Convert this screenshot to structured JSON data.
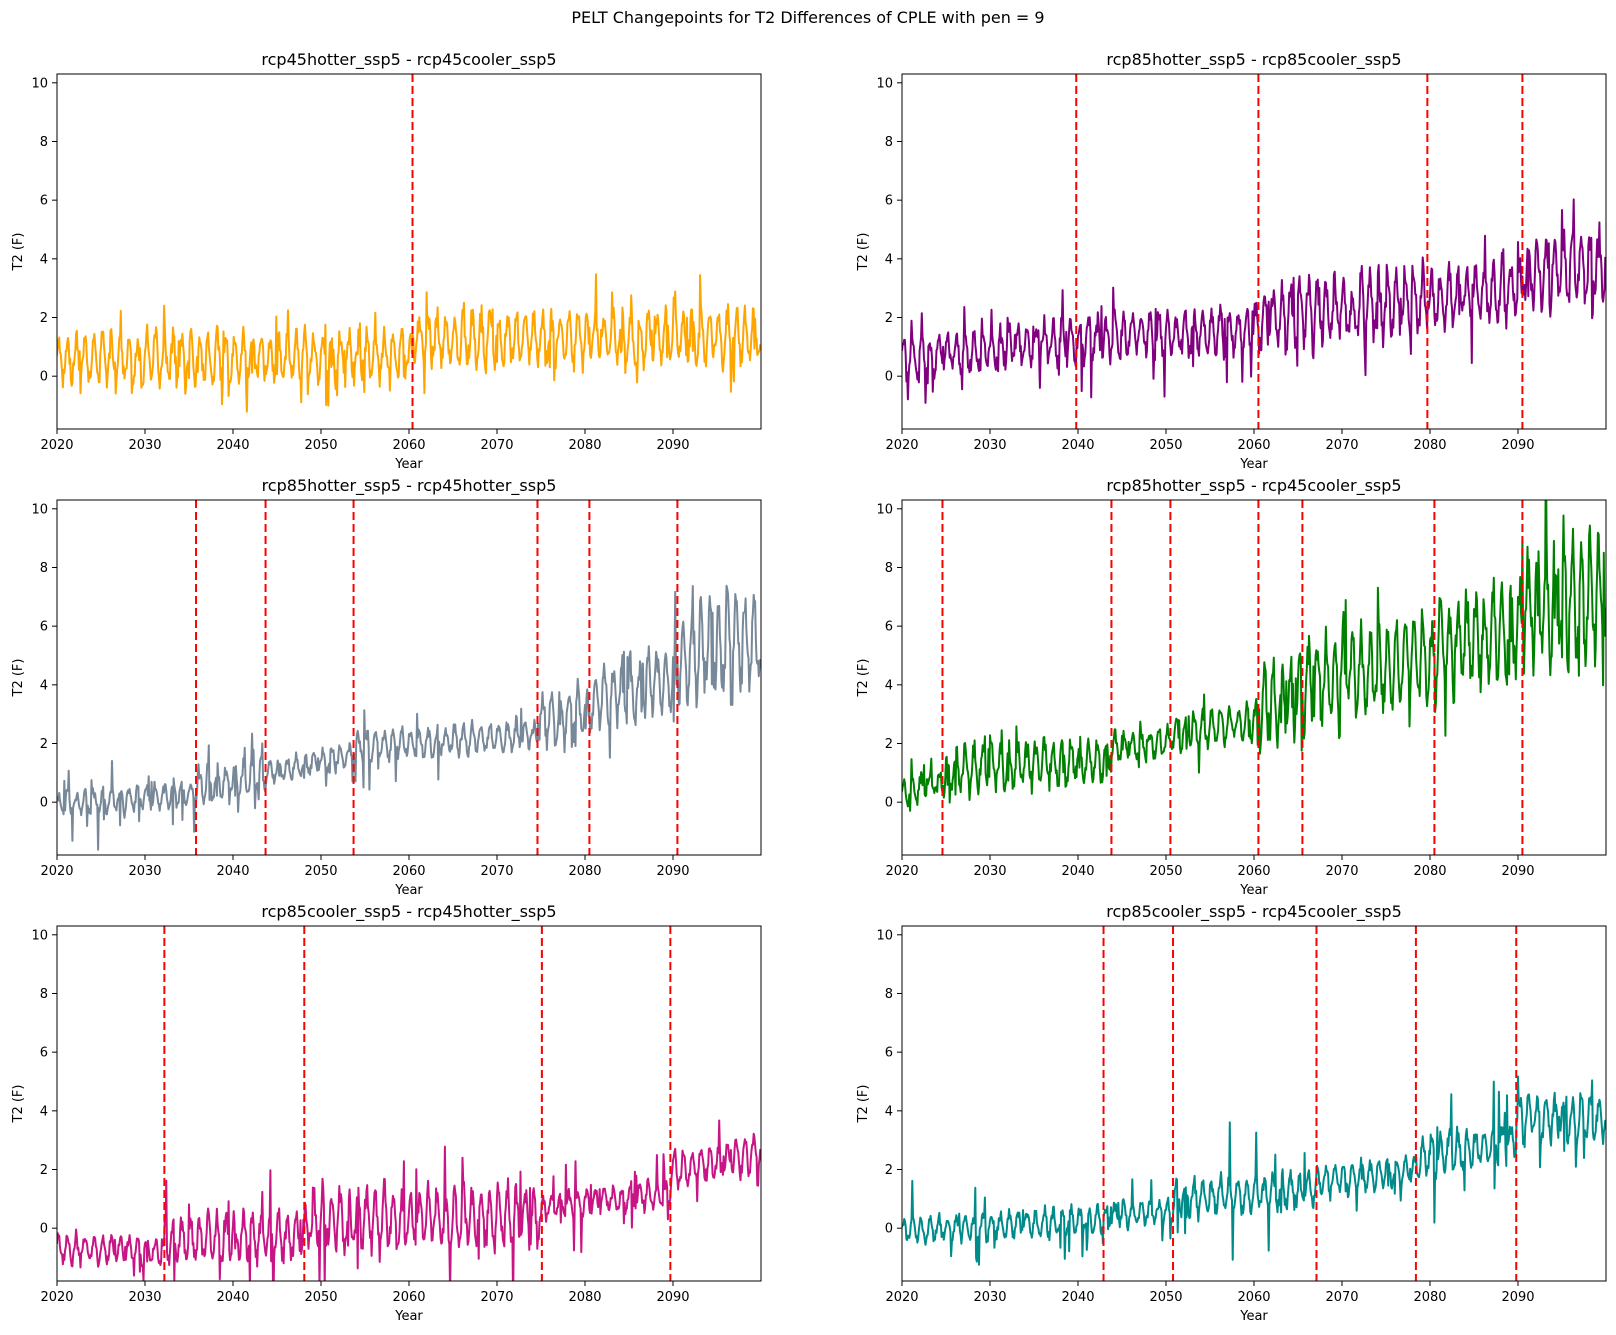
{
  "suptitle": "PELT Changepoints for T2 Differences of CPLE with pen = 9",
  "chart_data": [
    {
      "type": "line",
      "title": "rcp45hotter_ssp5 - rcp45cooler_ssp5",
      "xlabel": "Year",
      "ylabel": "T2 (F)",
      "xlim": [
        2020,
        2100
      ],
      "ylim": [
        -1.8,
        10.3
      ],
      "xticks": [
        2020,
        2030,
        2040,
        2050,
        2060,
        2070,
        2080,
        2090
      ],
      "yticks": [
        0,
        2,
        4,
        6,
        8,
        10
      ],
      "grid": false,
      "color": "#ffa500",
      "changepoint_color": "#ff0000",
      "changepoints": [
        2060.4
      ],
      "segments": [
        {
          "start": 2020,
          "end": 2060.4,
          "base_start": 0.55,
          "base_end": 0.75,
          "amplitude": 0.85,
          "spike_amplitude": 1.2
        },
        {
          "start": 2060.4,
          "end": 2100,
          "base_start": 1.3,
          "base_end": 1.35,
          "amplitude": 0.9,
          "spike_amplitude": 1.4
        }
      ]
    },
    {
      "type": "line",
      "title": "rcp85hotter_ssp5 - rcp85cooler_ssp5",
      "xlabel": "Year",
      "ylabel": "T2 (F)",
      "xlim": [
        2020,
        2100
      ],
      "ylim": [
        -1.8,
        10.3
      ],
      "xticks": [
        2020,
        2030,
        2040,
        2050,
        2060,
        2070,
        2080,
        2090
      ],
      "yticks": [
        0,
        2,
        4,
        6,
        8,
        10
      ],
      "grid": false,
      "color": "#800080",
      "changepoint_color": "#ff0000",
      "changepoints": [
        2039.8,
        2060.5,
        2079.7,
        2090.5
      ],
      "segments": [
        {
          "start": 2020,
          "end": 2039.8,
          "base_start": 0.6,
          "base_end": 1.2,
          "amplitude": 0.7,
          "spike_amplitude": 1.0
        },
        {
          "start": 2039.8,
          "end": 2060.5,
          "base_start": 1.3,
          "base_end": 1.6,
          "amplitude": 0.8,
          "spike_amplitude": 1.8
        },
        {
          "start": 2060.5,
          "end": 2079.7,
          "base_start": 2.0,
          "base_end": 2.6,
          "amplitude": 1.1,
          "spike_amplitude": 1.6
        },
        {
          "start": 2079.7,
          "end": 2090.5,
          "base_start": 2.6,
          "base_end": 3.0,
          "amplitude": 1.0,
          "spike_amplitude": 1.4
        },
        {
          "start": 2090.5,
          "end": 2100,
          "base_start": 3.4,
          "base_end": 3.8,
          "amplitude": 1.2,
          "spike_amplitude": 2.0
        }
      ]
    },
    {
      "type": "line",
      "title": "rcp85hotter_ssp5 - rcp45hotter_ssp5",
      "xlabel": "Year",
      "ylabel": "T2 (F)",
      "xlim": [
        2020,
        2100
      ],
      "ylim": [
        -1.8,
        10.3
      ],
      "xticks": [
        2020,
        2030,
        2040,
        2050,
        2060,
        2070,
        2080,
        2090
      ],
      "yticks": [
        0,
        2,
        4,
        6,
        8,
        10
      ],
      "grid": false,
      "color": "#778899",
      "changepoint_color": "#ff0000",
      "changepoints": [
        2035.8,
        2043.7,
        2053.7,
        2074.6,
        2080.5,
        2090.5
      ],
      "segments": [
        {
          "start": 2020,
          "end": 2035.8,
          "base_start": -0.1,
          "base_end": 0.3,
          "amplitude": 0.45,
          "spike_amplitude": 1.2
        },
        {
          "start": 2035.8,
          "end": 2043.7,
          "base_start": 0.6,
          "base_end": 0.9,
          "amplitude": 0.6,
          "spike_amplitude": 1.0
        },
        {
          "start": 2043.7,
          "end": 2053.7,
          "base_start": 1.0,
          "base_end": 1.6,
          "amplitude": 0.4,
          "spike_amplitude": 0.8
        },
        {
          "start": 2053.7,
          "end": 2074.6,
          "base_start": 1.9,
          "base_end": 2.3,
          "amplitude": 0.5,
          "spike_amplitude": 1.4
        },
        {
          "start": 2074.6,
          "end": 2080.5,
          "base_start": 2.8,
          "base_end": 3.0,
          "amplitude": 0.9,
          "spike_amplitude": 1.4
        },
        {
          "start": 2080.5,
          "end": 2090.5,
          "base_start": 3.4,
          "base_end": 4.2,
          "amplitude": 1.1,
          "spike_amplitude": 1.8
        },
        {
          "start": 2090.5,
          "end": 2100,
          "base_start": 5.0,
          "base_end": 5.6,
          "amplitude": 1.7,
          "spike_amplitude": 2.2
        }
      ]
    },
    {
      "type": "line",
      "title": "rcp85hotter_ssp5 - rcp45cooler_ssp5",
      "xlabel": "Year",
      "ylabel": "T2 (F)",
      "xlim": [
        2020,
        2100
      ],
      "ylim": [
        -1.8,
        10.3
      ],
      "xticks": [
        2020,
        2030,
        2040,
        2050,
        2060,
        2070,
        2080,
        2090
      ],
      "yticks": [
        0,
        2,
        4,
        6,
        8,
        10
      ],
      "grid": false,
      "color": "#008000",
      "changepoint_color": "#ff0000",
      "changepoints": [
        2024.6,
        2043.8,
        2050.5,
        2060.5,
        2065.5,
        2080.5,
        2090.5
      ],
      "segments": [
        {
          "start": 2020,
          "end": 2024.6,
          "base_start": 0.3,
          "base_end": 0.8,
          "amplitude": 0.5,
          "spike_amplitude": 0.8
        },
        {
          "start": 2024.6,
          "end": 2043.8,
          "base_start": 1.1,
          "base_end": 1.5,
          "amplitude": 0.8,
          "spike_amplitude": 1.3
        },
        {
          "start": 2043.8,
          "end": 2050.5,
          "base_start": 1.9,
          "base_end": 2.0,
          "amplitude": 0.5,
          "spike_amplitude": 0.8
        },
        {
          "start": 2050.5,
          "end": 2060.5,
          "base_start": 2.3,
          "base_end": 2.8,
          "amplitude": 0.6,
          "spike_amplitude": 1.0
        },
        {
          "start": 2060.5,
          "end": 2065.5,
          "base_start": 3.4,
          "base_end": 3.5,
          "amplitude": 1.4,
          "spike_amplitude": 2.2
        },
        {
          "start": 2065.5,
          "end": 2080.5,
          "base_start": 4.0,
          "base_end": 4.9,
          "amplitude": 1.5,
          "spike_amplitude": 2.4
        },
        {
          "start": 2080.5,
          "end": 2090.5,
          "base_start": 5.2,
          "base_end": 5.8,
          "amplitude": 1.6,
          "spike_amplitude": 2.6
        },
        {
          "start": 2090.5,
          "end": 2100,
          "base_start": 6.8,
          "base_end": 6.9,
          "amplitude": 2.1,
          "spike_amplitude": 3.2
        }
      ]
    },
    {
      "type": "line",
      "title": "rcp85cooler_ssp5 - rcp45hotter_ssp5",
      "xlabel": "Year",
      "ylabel": "T2 (F)",
      "xlim": [
        2020,
        2100
      ],
      "ylim": [
        -1.8,
        10.3
      ],
      "xticks": [
        2020,
        2030,
        2040,
        2050,
        2060,
        2070,
        2080,
        2090
      ],
      "yticks": [
        0,
        2,
        4,
        6,
        8,
        10
      ],
      "grid": false,
      "color": "#c71585",
      "changepoint_color": "#ff0000",
      "changepoints": [
        2032.2,
        2048.1,
        2075.1,
        2089.7
      ],
      "segments": [
        {
          "start": 2020,
          "end": 2032.2,
          "base_start": -0.7,
          "base_end": -0.8,
          "amplitude": 0.5,
          "spike_amplitude": 0.8
        },
        {
          "start": 2032.2,
          "end": 2048.1,
          "base_start": -0.4,
          "base_end": -0.3,
          "amplitude": 0.8,
          "spike_amplitude": 1.9
        },
        {
          "start": 2048.1,
          "end": 2075.1,
          "base_start": 0.2,
          "base_end": 0.4,
          "amplitude": 1.0,
          "spike_amplitude": 2.4
        },
        {
          "start": 2075.1,
          "end": 2089.7,
          "base_start": 0.7,
          "base_end": 1.2,
          "amplitude": 0.45,
          "spike_amplitude": 1.6
        },
        {
          "start": 2089.7,
          "end": 2100,
          "base_start": 1.9,
          "base_end": 2.6,
          "amplitude": 0.6,
          "spike_amplitude": 1.0
        }
      ]
    },
    {
      "type": "line",
      "title": "rcp85cooler_ssp5 - rcp45cooler_ssp5",
      "xlabel": "Year",
      "ylabel": "T2 (F)",
      "xlim": [
        2020,
        2100
      ],
      "ylim": [
        -1.8,
        10.3
      ],
      "xticks": [
        2020,
        2030,
        2040,
        2050,
        2060,
        2070,
        2080,
        2090
      ],
      "yticks": [
        0,
        2,
        4,
        6,
        8,
        10
      ],
      "grid": false,
      "color": "#008b8b",
      "changepoint_color": "#ff0000",
      "changepoints": [
        2042.9,
        2050.8,
        2067.1,
        2078.4,
        2089.8
      ],
      "segments": [
        {
          "start": 2020,
          "end": 2042.9,
          "base_start": -0.1,
          "base_end": 0.3,
          "amplitude": 0.45,
          "spike_amplitude": 1.2
        },
        {
          "start": 2042.9,
          "end": 2050.8,
          "base_start": 0.4,
          "base_end": 0.6,
          "amplitude": 0.4,
          "spike_amplitude": 0.9
        },
        {
          "start": 2050.8,
          "end": 2067.1,
          "base_start": 1.0,
          "base_end": 1.3,
          "amplitude": 0.6,
          "spike_amplitude": 1.8
        },
        {
          "start": 2067.1,
          "end": 2078.4,
          "base_start": 1.6,
          "base_end": 2.0,
          "amplitude": 0.5,
          "spike_amplitude": 1.0
        },
        {
          "start": 2078.4,
          "end": 2089.8,
          "base_start": 2.4,
          "base_end": 3.0,
          "amplitude": 0.7,
          "spike_amplitude": 2.1
        },
        {
          "start": 2089.8,
          "end": 2100,
          "base_start": 3.8,
          "base_end": 3.7,
          "amplitude": 0.8,
          "spike_amplitude": 1.6
        }
      ]
    }
  ]
}
